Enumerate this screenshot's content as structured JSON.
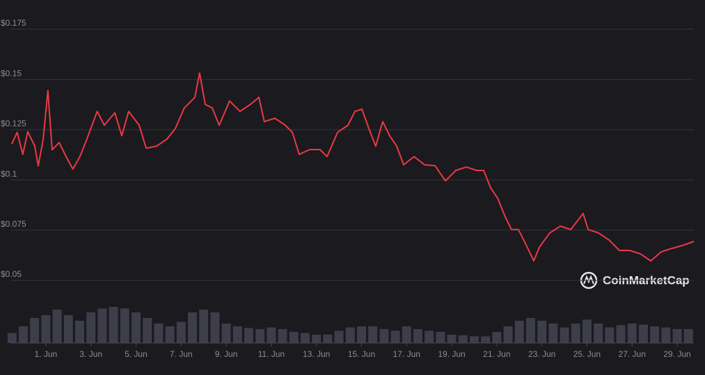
{
  "chart_data": {
    "type": "line",
    "x": [
      -0.51,
      -0.27,
      -0.02,
      0.2,
      0.51,
      0.66,
      0.88,
      1.09,
      1.28,
      1.59,
      1.9,
      2.2,
      2.51,
      2.82,
      3.28,
      3.59,
      4.06,
      4.37,
      4.67,
      5.14,
      5.45,
      5.91,
      6.37,
      6.74,
      7.14,
      7.61,
      7.82,
      8.07,
      8.38,
      8.69,
      9.15,
      9.61,
      10.08,
      10.45,
      10.69,
      11.16,
      11.62,
      11.93,
      12.24,
      12.7,
      13.16,
      13.47,
      13.94,
      14.4,
      14.71,
      15.02,
      15.33,
      15.63,
      15.94,
      16.25,
      16.56,
      16.87,
      17.33,
      17.8,
      18.26,
      18.72,
      19.18,
      19.65,
      20.11,
      20.42,
      20.73,
      21.04,
      21.35,
      21.65,
      21.96,
      22.27,
      22.64,
      22.89,
      23.35,
      23.82,
      24.28,
      24.83,
      25.05,
      25.51,
      25.98,
      26.44,
      26.9,
      27.37,
      27.83,
      28.29,
      28.76,
      29.22,
      29.74
    ],
    "series": [
      {
        "color": "#ea3943",
        "values": [
          0.1179,
          0.1237,
          0.1127,
          0.124,
          0.1168,
          0.107,
          0.12,
          0.1445,
          0.115,
          0.1186,
          0.1116,
          0.1054,
          0.1116,
          0.1203,
          0.1341,
          0.1272,
          0.1334,
          0.122,
          0.1341,
          0.1272,
          0.1158,
          0.1168,
          0.1203,
          0.1255,
          0.1358,
          0.1411,
          0.1532,
          0.1376,
          0.1358,
          0.1272,
          0.1393,
          0.1341,
          0.1376,
          0.1411,
          0.129,
          0.1307,
          0.1272,
          0.1237,
          0.1127,
          0.1151,
          0.1151,
          0.1116,
          0.1237,
          0.1272,
          0.1341,
          0.1352,
          0.1255,
          0.1168,
          0.129,
          0.122,
          0.1168,
          0.1075,
          0.1116,
          0.1075,
          0.1071,
          0.0995,
          0.1047,
          0.1064,
          0.1047,
          0.1047,
          0.096,
          0.0909,
          0.0822,
          0.0753,
          0.0753,
          0.0684,
          0.0597,
          0.0666,
          0.0736,
          0.077,
          0.0753,
          0.0833,
          0.0753,
          0.0736,
          0.0701,
          0.0649,
          0.0649,
          0.0632,
          0.0597,
          0.0642,
          0.0659,
          0.0673,
          0.0694
        ]
      }
    ],
    "volume": {
      "color": "#3d3e4a",
      "x": [
        -0.5,
        0,
        0.5,
        1,
        1.5,
        2,
        2.5,
        3,
        3.5,
        4,
        4.5,
        5,
        5.5,
        6,
        6.5,
        7,
        7.5,
        8,
        8.5,
        9,
        9.5,
        10,
        10.5,
        11,
        11.5,
        12,
        12.5,
        13,
        13.5,
        14,
        14.5,
        15,
        15.5,
        16,
        16.5,
        17,
        17.5,
        18,
        18.5,
        19,
        19.5,
        20,
        20.5,
        21,
        21.5,
        22,
        22.5,
        23,
        23.5,
        24,
        24.5,
        25,
        25.5,
        26,
        26.5,
        27,
        27.5,
        28,
        28.5,
        29,
        29.5
      ],
      "values": [
        18,
        30,
        45,
        50,
        60,
        50,
        40,
        55,
        62,
        65,
        62,
        55,
        45,
        35,
        30,
        38,
        55,
        60,
        55,
        35,
        30,
        27,
        25,
        28,
        25,
        20,
        18,
        15,
        15,
        22,
        28,
        30,
        30,
        25,
        22,
        30,
        25,
        22,
        20,
        15,
        14,
        12,
        12,
        20,
        30,
        40,
        45,
        40,
        35,
        28,
        35,
        42,
        35,
        28,
        32,
        35,
        33,
        30,
        28,
        25,
        25
      ]
    },
    "y2lim": [
      0,
      100
    ],
    "xlim": [
      -0.57,
      29.74
    ],
    "xticks": [
      {
        "value": 1,
        "label": "1. Jun"
      },
      {
        "value": 3,
        "label": "3. Jun"
      },
      {
        "value": 5,
        "label": "5. Jun"
      },
      {
        "value": 7,
        "label": "7. Jun"
      },
      {
        "value": 9,
        "label": "9. Jun"
      },
      {
        "value": 11,
        "label": "11. Jun"
      },
      {
        "value": 13,
        "label": "13. Jun"
      },
      {
        "value": 15,
        "label": "15. Jun"
      },
      {
        "value": 17,
        "label": "17. Jun"
      },
      {
        "value": 19,
        "label": "19. Jun"
      },
      {
        "value": 21,
        "label": "21. Jun"
      },
      {
        "value": 23,
        "label": "23. Jun"
      },
      {
        "value": 25,
        "label": "25. Jun"
      },
      {
        "value": 27,
        "label": "27. Jun"
      },
      {
        "value": 29,
        "label": "29. Jun"
      }
    ],
    "ylim": [
      0.05,
      0.175
    ],
    "yticks": [
      {
        "value": 0.05,
        "label": "$0.05"
      },
      {
        "value": 0.075,
        "label": "$0.075"
      },
      {
        "value": 0.1,
        "label": "$0.1"
      },
      {
        "value": 0.125,
        "label": "$0.125"
      },
      {
        "value": 0.15,
        "label": "$0.15"
      },
      {
        "value": 0.175,
        "label": "$0.175"
      }
    ],
    "grid": true,
    "watermark": "CoinMarketCap"
  }
}
